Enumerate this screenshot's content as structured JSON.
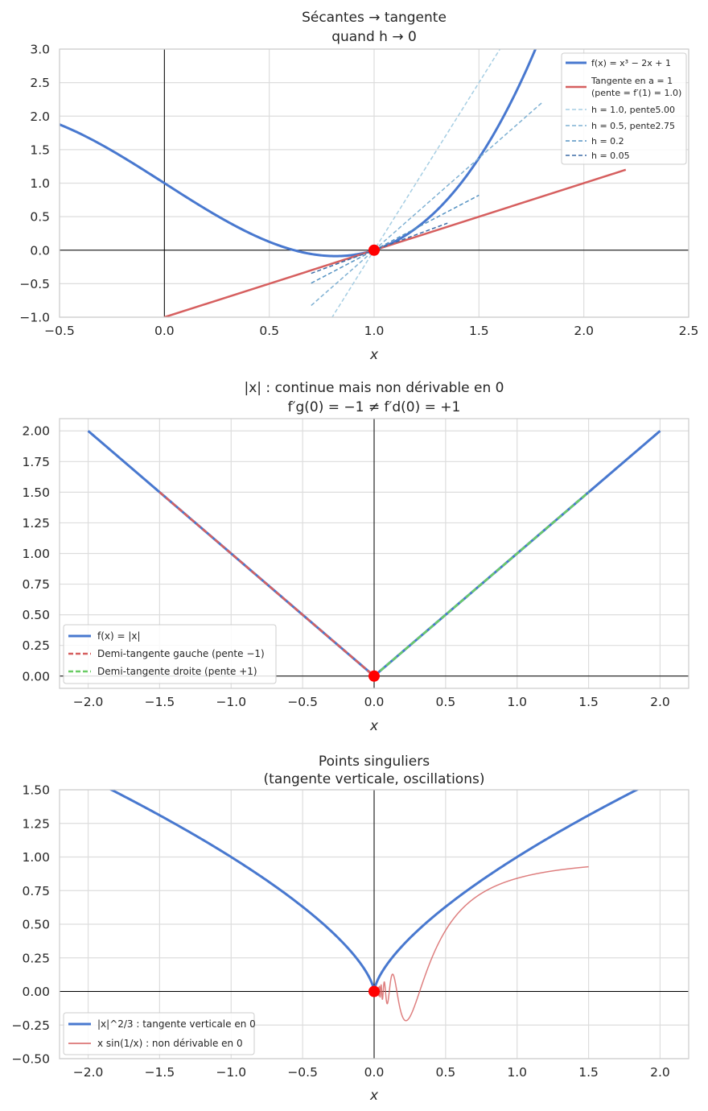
{
  "chart_data": [
    {
      "type": "line",
      "title_lines": [
        "Sécantes → tangente",
        "quand h → 0"
      ],
      "xlabel": "x",
      "xlim": [
        -0.5,
        2.5
      ],
      "ylim": [
        -1.0,
        3.0
      ],
      "xticks": [
        "−0.5",
        "0.0",
        "0.5",
        "1.0",
        "1.5",
        "2.0",
        "2.5"
      ],
      "yticks": [
        "−1.0",
        "−0.5",
        "0.0",
        "0.5",
        "1.0",
        "1.5",
        "2.0",
        "2.5",
        "3.0"
      ],
      "grid": true,
      "legend_position": "top-right",
      "point": {
        "x": 1.0,
        "y": 0.0
      },
      "series": [
        {
          "name": "f(x) = x³ − 2x + 1",
          "kind": "function",
          "x_range": [
            -0.5,
            2.5
          ],
          "color": "#4878cf"
        },
        {
          "name": "Tangente en a = 1",
          "name_line2": "(pente = f′(1) = 1.0)",
          "kind": "line",
          "slope": 1.0,
          "x_range": [
            0.0,
            2.2
          ],
          "color": "#d65f5f"
        },
        {
          "name": "h = 1.0, pente5.00",
          "kind": "secant",
          "slope": 5.0,
          "x_range": [
            0.7,
            2.0
          ],
          "color": "#a6cee3"
        },
        {
          "name": "h = 0.5, pente2.75",
          "kind": "secant",
          "slope": 2.75,
          "x_range": [
            0.7,
            1.8
          ],
          "color": "#7fb1d3"
        },
        {
          "name": "h = 0.2",
          "kind": "secant",
          "slope": 1.64,
          "x_range": [
            0.7,
            1.5
          ],
          "color": "#5592c2"
        },
        {
          "name": "h = 0.05",
          "kind": "secant",
          "slope": 1.1525,
          "x_range": [
            0.7,
            1.35
          ],
          "color": "#3c6ba6"
        }
      ]
    },
    {
      "type": "line",
      "title_lines": [
        "|x| : continue mais non dérivable en 0",
        "f′g(0) = −1 ≠ f′d(0) = +1"
      ],
      "xlabel": "x",
      "xlim": [
        -2.2,
        2.2
      ],
      "ylim": [
        -0.1,
        2.1
      ],
      "xticks": [
        "−2.0",
        "−1.5",
        "−1.0",
        "−0.5",
        "0.0",
        "0.5",
        "1.0",
        "1.5",
        "2.0"
      ],
      "yticks": [
        "0.00",
        "0.25",
        "0.50",
        "0.75",
        "1.00",
        "1.25",
        "1.50",
        "1.75",
        "2.00"
      ],
      "grid": true,
      "legend_position": "lower-left",
      "point": {
        "x": 0.0,
        "y": 0.0
      },
      "series": [
        {
          "name": "f(x) = |x|",
          "kind": "function",
          "x_range": [
            -2.0,
            2.0
          ],
          "color": "#4878cf"
        },
        {
          "name": "Demi-tangente gauche (pente −1)",
          "kind": "line",
          "slope": -1.0,
          "x_range": [
            -1.5,
            0.0
          ],
          "color": "#d65f5f"
        },
        {
          "name": "Demi-tangente droite (pente +1)",
          "kind": "line",
          "slope": 1.0,
          "x_range": [
            0.0,
            1.5
          ],
          "color": "#6acc65"
        }
      ]
    },
    {
      "type": "line",
      "title_lines": [
        "Points singuliers",
        "(tangente verticale, oscillations)"
      ],
      "xlabel": "x",
      "xlim": [
        -2.2,
        2.2
      ],
      "ylim": [
        -0.5,
        1.5
      ],
      "xticks": [
        "−2.0",
        "−1.5",
        "−1.0",
        "−0.5",
        "0.0",
        "0.5",
        "1.0",
        "1.5",
        "2.0"
      ],
      "yticks": [
        "−0.50",
        "−0.25",
        "0.00",
        "0.25",
        "0.50",
        "0.75",
        "1.00",
        "1.25",
        "1.50"
      ],
      "grid": true,
      "legend_position": "lower-left",
      "point": {
        "x": 0.0,
        "y": 0.0
      },
      "series": [
        {
          "name": "|x|^2/3 : tangente verticale en 0",
          "kind": "function",
          "x_range": [
            -2.0,
            2.0
          ],
          "color": "#4878cf"
        },
        {
          "name": "x sin(1/x) : non dérivable en 0",
          "kind": "function",
          "x_range": [
            0.01,
            1.5
          ],
          "color": "#d65f5f"
        }
      ]
    }
  ]
}
